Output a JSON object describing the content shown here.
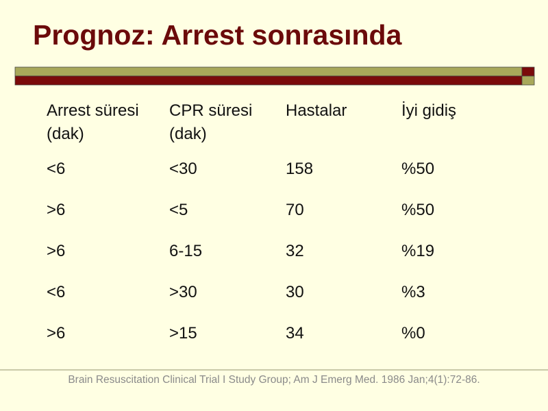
{
  "header": {
    "title": "Prognoz: Arrest sonrasında"
  },
  "table": {
    "columns": [
      [
        "Arrest süresi",
        "(dak)"
      ],
      [
        "CPR süresi",
        "(dak)"
      ],
      [
        "Hastalar"
      ],
      [
        "İyi gidiş"
      ]
    ],
    "rows": [
      [
        "<6",
        "<30",
        "158",
        "%50"
      ],
      [
        ">6",
        "<5",
        "70",
        "%50"
      ],
      [
        ">6",
        "6-15",
        "32",
        "%19"
      ],
      [
        "<6",
        ">30",
        "30",
        "%3"
      ],
      [
        ">6",
        ">15",
        "34",
        "%0"
      ]
    ]
  },
  "footer": {
    "citation": "Brain Resuscitation Clinical Trial I Study Group; Am J Emerg Med. 1986 Jan;4(1):72-86."
  }
}
